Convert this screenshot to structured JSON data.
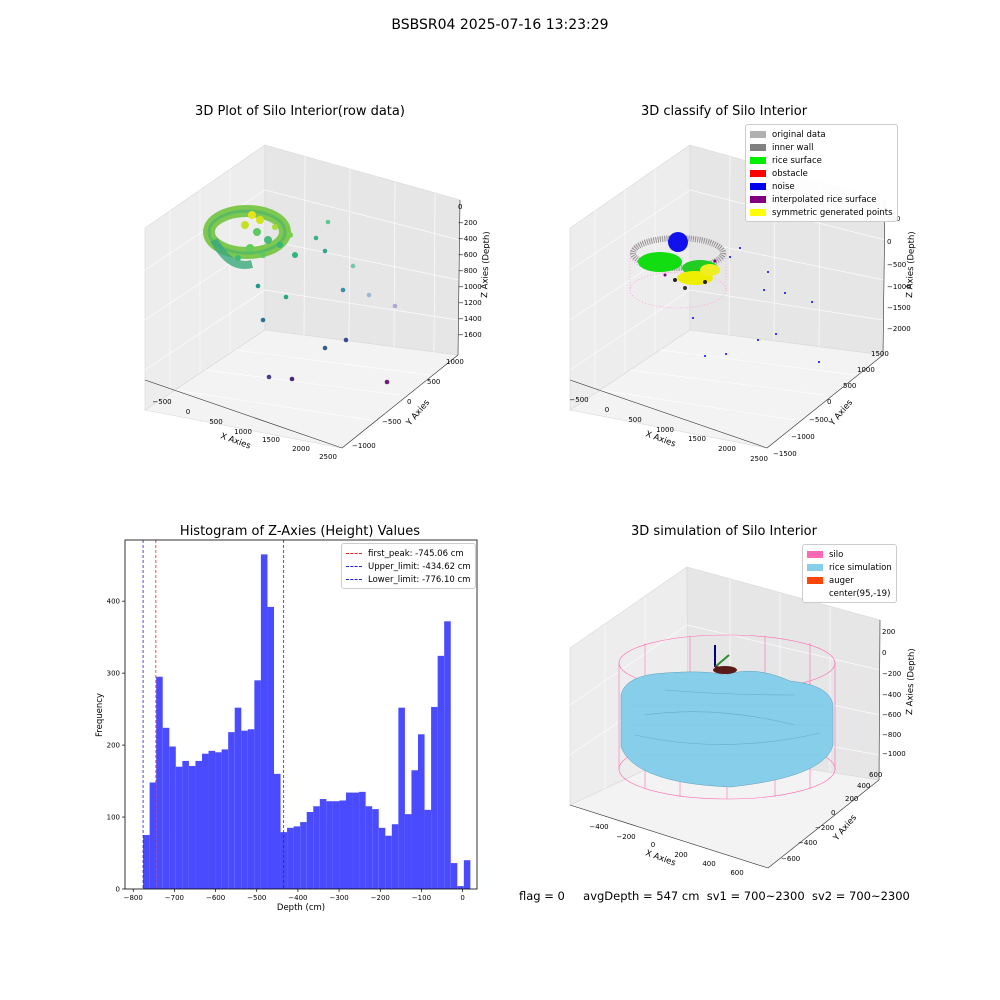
{
  "suptitle": "BSBSR04 2025-07-16 13:23:29",
  "colors": {
    "hist_bar": "#4a4aff",
    "first_peak_line": "#e8251f",
    "limit_line": "#2323c8",
    "silo_mesh": "#ff69b4",
    "rice": "#87ceeb"
  },
  "panel1": {
    "title": "3D Plot of Silo Interior(row data)",
    "xlabel": "X Axies",
    "ylabel": "Y Axies",
    "zlabel": "Z Axies (Depth)",
    "xticks": [
      "−500",
      "0",
      "500",
      "1000",
      "1500",
      "2000",
      "2500"
    ],
    "yticks": [
      "−1000",
      "−500",
      "0",
      "500",
      "1000"
    ],
    "zticks": [
      "0",
      "−200",
      "−400",
      "−600",
      "−800",
      "−1000",
      "−1200",
      "−1400",
      "−1600"
    ]
  },
  "panel2": {
    "title": "3D classify of Silo Interior",
    "xlabel": "X Axies",
    "ylabel": "Y Axies",
    "zlabel": "Z Axies (Depth)",
    "xticks": [
      "−500",
      "0",
      "500",
      "1000",
      "1500",
      "2000",
      "2500"
    ],
    "yticks": [
      "−1500",
      "−1000",
      "−500",
      "0",
      "500",
      "1000",
      "1500"
    ],
    "zticks": [
      "500",
      "0",
      "−500",
      "−1000",
      "−1500",
      "−2000"
    ],
    "legend": [
      {
        "label": "original data",
        "color": "#b0b0b0"
      },
      {
        "label": "inner wall",
        "color": "#808080"
      },
      {
        "label": "rice surface",
        "color": "#00ee00"
      },
      {
        "label": "obstacle",
        "color": "#ff0000"
      },
      {
        "label": "noise",
        "color": "#0000ee"
      },
      {
        "label": "interpolated rice surface",
        "color": "#800080"
      },
      {
        "label": "symmetric generated points",
        "color": "#ffff00"
      }
    ]
  },
  "panel4": {
    "title": "3D simulation of Silo Interior",
    "xlabel": "X Axies",
    "ylabel": "Y Axies",
    "zlabel": "Z Axies (Depth)",
    "xticks": [
      "−400",
      "−200",
      "0",
      "200",
      "400",
      "600"
    ],
    "yticks": [
      "−600",
      "−400",
      "−200",
      "0",
      "200",
      "400",
      "600"
    ],
    "zticks": [
      "200",
      "0",
      "−200",
      "−400",
      "−600",
      "−800",
      "−1000"
    ],
    "legend": [
      {
        "label": "silo",
        "color": "#ff69b4"
      },
      {
        "label": "rice simulation",
        "color": "#87ceeb"
      },
      {
        "label": "auger",
        "color": "#ff4500"
      },
      {
        "label": "center(95,-19)",
        "color": ""
      }
    ]
  },
  "chart_data": {
    "type": "bar",
    "title": "Histogram of Z-Axies (Height) Values",
    "xlabel": "Depth (cm)",
    "ylabel": "Frequency",
    "xlim": [
      -820,
      35
    ],
    "ylim": [
      0,
      485
    ],
    "xticks": [
      -800,
      -700,
      -600,
      -500,
      -400,
      -300,
      -200,
      -100,
      0
    ],
    "yticks": [
      0,
      100,
      200,
      300,
      400
    ],
    "bin_start": -776.1,
    "bin_width": 15.9,
    "values": [
      75,
      148,
      295,
      224,
      198,
      170,
      178,
      171,
      178,
      188,
      192,
      190,
      194,
      218,
      252,
      220,
      222,
      290,
      465,
      392,
      160,
      79,
      85,
      87,
      93,
      107,
      115,
      125,
      122,
      122,
      123,
      134,
      134,
      135,
      115,
      111,
      85,
      74,
      90,
      252,
      104,
      165,
      215,
      110,
      253,
      324,
      372,
      36,
      4,
      40
    ],
    "lines": [
      {
        "label": "first_peak: -745.06 cm",
        "x": -745.06,
        "color": "#e8251f"
      },
      {
        "label": "Upper_limit: -434.62 cm",
        "x": -434.62,
        "color": "#2323c8"
      },
      {
        "label": "Lower_limit: -776.10 cm",
        "x": -776.1,
        "color": "#2323c8"
      }
    ],
    "legend_position": "upper right"
  },
  "footer": {
    "flag": "flag = 0",
    "avg": "avgDepth = 547 cm",
    "sv1": "sv1 = 700~2300",
    "sv2": "sv2 = 700~2300"
  }
}
